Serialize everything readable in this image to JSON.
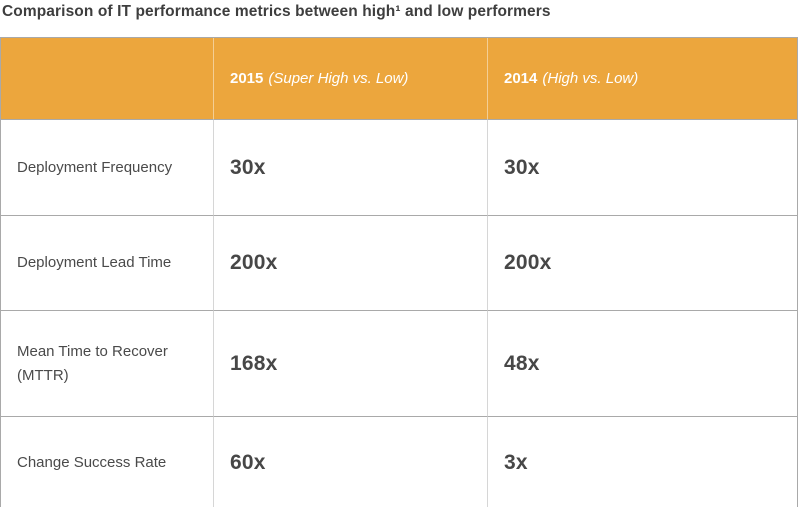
{
  "title": "Comparison of IT performance metrics between high¹ and low performers",
  "colors": {
    "header_bg": "#ECA63D",
    "header_text": "#FFFFFF",
    "title_text": "#3E3E3E",
    "body_text": "#4A4A4A",
    "horizontal_border": "#A9A9A9",
    "vertical_border": "#D6D6D6"
  },
  "table": {
    "columns": [
      {
        "year": "2015",
        "note": "(Super High vs. Low)"
      },
      {
        "year": "2014",
        "note": "(High vs. Low)"
      }
    ],
    "rows": [
      {
        "metric": "Deployment Frequency",
        "values": [
          "30x",
          "30x"
        ]
      },
      {
        "metric": "Deployment Lead Time",
        "values": [
          "200x",
          "200x"
        ]
      },
      {
        "metric": "Mean Time to Recover (MTTR)",
        "values": [
          "168x",
          "48x"
        ]
      },
      {
        "metric": "Change Success Rate",
        "values": [
          "60x",
          "3x"
        ]
      }
    ]
  },
  "chart_data": {
    "type": "table",
    "title": "Comparison of IT performance metrics between high¹ and low performers",
    "columns": [
      "",
      "2015 (Super High vs. Low)",
      "2014 (High vs. Low)"
    ],
    "rows": [
      [
        "Deployment Frequency",
        "30x",
        "30x"
      ],
      [
        "Deployment Lead Time",
        "200x",
        "200x"
      ],
      [
        "Mean Time to Recover (MTTR)",
        "168x",
        "48x"
      ],
      [
        "Change Success Rate",
        "60x",
        "3x"
      ]
    ],
    "layout": {
      "header_background": "#ECA63D",
      "grid": "on"
    }
  }
}
